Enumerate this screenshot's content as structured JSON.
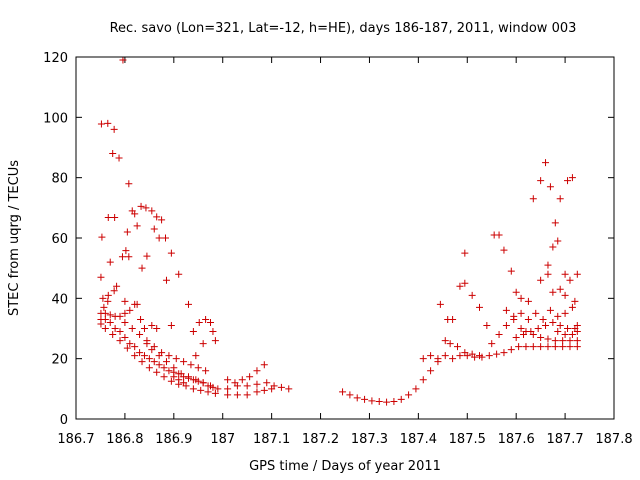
{
  "chart_data": {
    "type": "scatter",
    "title": "Rec. savo (Lon=321, Lat=-12, h=HE), days 186-187, 2011, window 003",
    "xlabel": "GPS time / Days of year 2011",
    "ylabel": "STEC from uqrg / TECUs",
    "xlim": [
      186.7,
      187.8
    ],
    "ylim": [
      0,
      120
    ],
    "xticks": [
      186.7,
      186.8,
      186.9,
      187,
      187.1,
      187.2,
      187.3,
      187.4,
      187.5,
      187.6,
      187.7,
      187.8
    ],
    "xtick_labels": [
      "186.7",
      "186.8",
      "186.9",
      "187",
      "187.1",
      "187.2",
      "187.3",
      "187.4",
      "187.5",
      "187.6",
      "187.7",
      "187.8"
    ],
    "yticks": [
      0,
      20,
      40,
      60,
      80,
      100,
      120
    ],
    "ytick_labels": [
      "0",
      "20",
      "40",
      "60",
      "80",
      "100",
      "120"
    ],
    "grid": false,
    "marker": "plus",
    "color": "#cc0000",
    "series": [
      {
        "points": [
          [
            186.752,
            97.8
          ],
          [
            186.765,
            98.0
          ],
          [
            186.778,
            96.0
          ],
          [
            186.796,
            119.0
          ],
          [
            186.775,
            88.0
          ],
          [
            186.788,
            86.5
          ],
          [
            186.808,
            78.0
          ],
          [
            186.766,
            66.8
          ],
          [
            186.779,
            66.8
          ],
          [
            186.753,
            60.3
          ],
          [
            186.805,
            62.0
          ],
          [
            186.802,
            55.8
          ],
          [
            186.795,
            53.8
          ],
          [
            186.808,
            53.8
          ],
          [
            186.751,
            47.0
          ],
          [
            186.77,
            52.0
          ],
          [
            186.783,
            44.0
          ],
          [
            186.766,
            41.0
          ],
          [
            186.778,
            42.5
          ],
          [
            186.8,
            39.0
          ],
          [
            186.757,
            37.0
          ],
          [
            186.815,
            69.0
          ],
          [
            186.82,
            68.0
          ],
          [
            186.825,
            64.0
          ],
          [
            186.833,
            70.5
          ],
          [
            186.843,
            70.0
          ],
          [
            186.855,
            69.0
          ],
          [
            186.865,
            67.0
          ],
          [
            186.875,
            66.0
          ],
          [
            186.86,
            63.0
          ],
          [
            186.87,
            60.0
          ],
          [
            186.883,
            60.0
          ],
          [
            186.845,
            54.0
          ],
          [
            186.835,
            50.0
          ],
          [
            186.895,
            55.0
          ],
          [
            186.91,
            48.0
          ],
          [
            186.885,
            46.0
          ],
          [
            186.825,
            38.0
          ],
          [
            186.832,
            33.0
          ],
          [
            186.84,
            30.0
          ],
          [
            186.855,
            31.0
          ],
          [
            186.865,
            30.0
          ],
          [
            186.895,
            31.0
          ],
          [
            186.93,
            38.0
          ],
          [
            186.94,
            29.0
          ],
          [
            186.952,
            32.0
          ],
          [
            186.965,
            33.0
          ],
          [
            186.975,
            32.0
          ],
          [
            186.98,
            29.0
          ],
          [
            186.985,
            26.0
          ],
          [
            186.96,
            25.0
          ],
          [
            186.945,
            21.0
          ],
          [
            186.76,
            35.0
          ],
          [
            186.77,
            34.5
          ],
          [
            186.78,
            34.0
          ],
          [
            186.79,
            34.0
          ],
          [
            186.8,
            35.0
          ],
          [
            186.81,
            36.0
          ],
          [
            186.82,
            38.0
          ],
          [
            186.755,
            40.0
          ],
          [
            186.765,
            39.0
          ],
          [
            186.751,
            35.0
          ],
          [
            186.751,
            33.0
          ],
          [
            186.751,
            31.5
          ],
          [
            186.76,
            33.0
          ],
          [
            186.77,
            32.0
          ],
          [
            186.78,
            30.0
          ],
          [
            186.79,
            29.0
          ],
          [
            186.8,
            27.0
          ],
          [
            186.81,
            25.0
          ],
          [
            186.82,
            24.0
          ],
          [
            186.83,
            22.0
          ],
          [
            186.84,
            21.0
          ],
          [
            186.85,
            20.0
          ],
          [
            186.86,
            19.0
          ],
          [
            186.87,
            18.0
          ],
          [
            186.88,
            17.0
          ],
          [
            186.89,
            16.0
          ],
          [
            186.9,
            15.5
          ],
          [
            186.91,
            15.0
          ],
          [
            186.92,
            14.0
          ],
          [
            186.93,
            13.5
          ],
          [
            186.94,
            13.0
          ],
          [
            186.95,
            12.5
          ],
          [
            186.96,
            12.0
          ],
          [
            186.97,
            11.0
          ],
          [
            186.98,
            10.5
          ],
          [
            186.99,
            10.0
          ],
          [
            186.76,
            30.0
          ],
          [
            186.775,
            28.0
          ],
          [
            186.79,
            26.0
          ],
          [
            186.805,
            23.5
          ],
          [
            186.82,
            21.0
          ],
          [
            186.835,
            19.0
          ],
          [
            186.85,
            17.0
          ],
          [
            186.865,
            15.5
          ],
          [
            186.88,
            14.0
          ],
          [
            186.895,
            12.5
          ],
          [
            186.91,
            11.5
          ],
          [
            186.925,
            11.0
          ],
          [
            186.94,
            10.0
          ],
          [
            186.955,
            9.5
          ],
          [
            186.97,
            9.0
          ],
          [
            186.985,
            8.5
          ],
          [
            186.8,
            32.0
          ],
          [
            186.815,
            30.0
          ],
          [
            186.83,
            28.0
          ],
          [
            186.845,
            26.0
          ],
          [
            186.86,
            24.0
          ],
          [
            186.875,
            22.0
          ],
          [
            186.89,
            21.0
          ],
          [
            186.905,
            20.0
          ],
          [
            186.92,
            19.0
          ],
          [
            186.935,
            18.0
          ],
          [
            186.95,
            17.0
          ],
          [
            186.965,
            16.0
          ],
          [
            186.845,
            25.0
          ],
          [
            186.855,
            23.0
          ],
          [
            186.87,
            21.0
          ],
          [
            186.885,
            19.0
          ],
          [
            186.9,
            17.0
          ],
          [
            186.915,
            15.0
          ],
          [
            186.93,
            14.0
          ],
          [
            186.945,
            13.0
          ],
          [
            186.96,
            12.0
          ],
          [
            186.975,
            11.0
          ],
          [
            186.9,
            14.0
          ],
          [
            186.91,
            13.0
          ],
          [
            186.92,
            12.0
          ],
          [
            187.01,
            13.0
          ],
          [
            187.025,
            12.0
          ],
          [
            187.04,
            13.0
          ],
          [
            187.055,
            14.0
          ],
          [
            187.07,
            16.0
          ],
          [
            187.085,
            18.0
          ],
          [
            187.01,
            10.0
          ],
          [
            187.03,
            11.0
          ],
          [
            187.05,
            11.0
          ],
          [
            187.07,
            11.5
          ],
          [
            187.09,
            12.0
          ],
          [
            187.105,
            11.0
          ],
          [
            187.12,
            10.5
          ],
          [
            187.135,
            10.0
          ],
          [
            187.01,
            8.0
          ],
          [
            187.03,
            8.0
          ],
          [
            187.05,
            8.0
          ],
          [
            187.07,
            9.0
          ],
          [
            187.085,
            9.5
          ],
          [
            187.1,
            10.0
          ],
          [
            187.245,
            9.0
          ],
          [
            187.26,
            8.0
          ],
          [
            187.275,
            7.0
          ],
          [
            187.29,
            6.5
          ],
          [
            187.305,
            6.0
          ],
          [
            187.32,
            5.8
          ],
          [
            187.335,
            5.6
          ],
          [
            187.35,
            5.8
          ],
          [
            187.365,
            6.5
          ],
          [
            187.38,
            8.0
          ],
          [
            187.395,
            10.0
          ],
          [
            187.41,
            13.0
          ],
          [
            187.425,
            16.0
          ],
          [
            187.44,
            19.0
          ],
          [
            187.445,
            38.0
          ],
          [
            187.46,
            33.0
          ],
          [
            187.47,
            33.0
          ],
          [
            187.485,
            44.0
          ],
          [
            187.495,
            45.0
          ],
          [
            187.495,
            55.0
          ],
          [
            187.51,
            41.0
          ],
          [
            187.525,
            37.0
          ],
          [
            187.54,
            31.0
          ],
          [
            187.555,
            61.0
          ],
          [
            187.565,
            61.0
          ],
          [
            187.575,
            56.0
          ],
          [
            187.59,
            49.0
          ],
          [
            187.6,
            42.0
          ],
          [
            187.61,
            40.0
          ],
          [
            187.625,
            39.0
          ],
          [
            187.635,
            73.0
          ],
          [
            187.65,
            79.0
          ],
          [
            187.66,
            85.0
          ],
          [
            187.67,
            77.0
          ],
          [
            187.68,
            65.0
          ],
          [
            187.69,
            73.0
          ],
          [
            187.705,
            79.0
          ],
          [
            187.715,
            80.0
          ],
          [
            187.665,
            51.0
          ],
          [
            187.675,
            57.0
          ],
          [
            187.685,
            59.0
          ],
          [
            187.65,
            46.0
          ],
          [
            187.665,
            48.0
          ],
          [
            187.675,
            42.0
          ],
          [
            187.69,
            43.0
          ],
          [
            187.7,
            48.0
          ],
          [
            187.71,
            46.0
          ],
          [
            187.725,
            48.0
          ],
          [
            187.72,
            39.0
          ],
          [
            187.7,
            41.0
          ],
          [
            187.41,
            20.0
          ],
          [
            187.425,
            21.0
          ],
          [
            187.44,
            20.0
          ],
          [
            187.455,
            21.0
          ],
          [
            187.47,
            20.0
          ],
          [
            187.485,
            21.0
          ],
          [
            187.5,
            21.0
          ],
          [
            187.515,
            20.5
          ],
          [
            187.53,
            20.5
          ],
          [
            187.545,
            21.0
          ],
          [
            187.56,
            21.5
          ],
          [
            187.575,
            22.0
          ],
          [
            187.59,
            23.0
          ],
          [
            187.605,
            24.0
          ],
          [
            187.62,
            24.0
          ],
          [
            187.635,
            24.0
          ],
          [
            187.65,
            24.0
          ],
          [
            187.665,
            24.0
          ],
          [
            187.68,
            24.0
          ],
          [
            187.695,
            24.0
          ],
          [
            187.71,
            24.0
          ],
          [
            187.725,
            24.0
          ],
          [
            187.455,
            26.0
          ],
          [
            187.465,
            25.0
          ],
          [
            187.48,
            24.0
          ],
          [
            187.495,
            22.0
          ],
          [
            187.51,
            21.5
          ],
          [
            187.525,
            21.0
          ],
          [
            187.55,
            25.0
          ],
          [
            187.565,
            28.0
          ],
          [
            187.58,
            31.0
          ],
          [
            187.595,
            33.0
          ],
          [
            187.61,
            30.0
          ],
          [
            187.62,
            29.0
          ],
          [
            187.635,
            28.0
          ],
          [
            187.65,
            27.0
          ],
          [
            187.665,
            26.5
          ],
          [
            187.68,
            26.0
          ],
          [
            187.695,
            26.0
          ],
          [
            187.71,
            26.0
          ],
          [
            187.725,
            26.0
          ],
          [
            187.6,
            27.0
          ],
          [
            187.615,
            28.0
          ],
          [
            187.63,
            29.0
          ],
          [
            187.645,
            30.0
          ],
          [
            187.66,
            31.0
          ],
          [
            187.675,
            32.0
          ],
          [
            187.69,
            31.0
          ],
          [
            187.705,
            30.0
          ],
          [
            187.72,
            30.0
          ],
          [
            187.725,
            29.0
          ],
          [
            187.58,
            36.0
          ],
          [
            187.595,
            34.0
          ],
          [
            187.61,
            35.0
          ],
          [
            187.625,
            33.0
          ],
          [
            187.64,
            35.0
          ],
          [
            187.655,
            33.0
          ],
          [
            187.67,
            36.0
          ],
          [
            187.685,
            34.0
          ],
          [
            187.7,
            35.0
          ],
          [
            187.715,
            37.0
          ],
          [
            187.725,
            31.0
          ],
          [
            187.715,
            28.0
          ],
          [
            187.7,
            28.0
          ],
          [
            187.685,
            29.0
          ]
        ]
      }
    ]
  }
}
